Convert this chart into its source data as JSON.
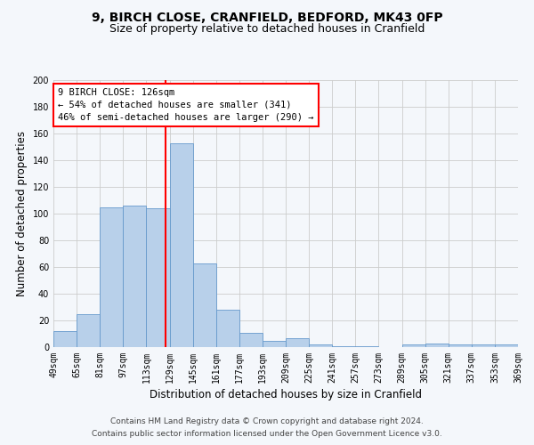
{
  "title": "9, BIRCH CLOSE, CRANFIELD, BEDFORD, MK43 0FP",
  "subtitle": "Size of property relative to detached houses in Cranfield",
  "xlabel": "Distribution of detached houses by size in Cranfield",
  "ylabel": "Number of detached properties",
  "bin_labels": [
    "49sqm",
    "65sqm",
    "81sqm",
    "97sqm",
    "113sqm",
    "129sqm",
    "145sqm",
    "161sqm",
    "177sqm",
    "193sqm",
    "209sqm",
    "225sqm",
    "241sqm",
    "257sqm",
    "273sqm",
    "289sqm",
    "305sqm",
    "321sqm",
    "337sqm",
    "353sqm",
    "369sqm"
  ],
  "bar_values": [
    12,
    25,
    105,
    106,
    104,
    153,
    63,
    28,
    11,
    5,
    7,
    2,
    1,
    1,
    0,
    2,
    3,
    2,
    2,
    2
  ],
  "bin_edges": [
    49,
    65,
    81,
    97,
    113,
    129,
    145,
    161,
    177,
    193,
    209,
    225,
    241,
    257,
    273,
    289,
    305,
    321,
    337,
    353,
    369
  ],
  "bar_color": "#b8d0ea",
  "bar_edge_color": "#6699cc",
  "vline_x": 126,
  "vline_color": "red",
  "ylim": [
    0,
    200
  ],
  "yticks": [
    0,
    20,
    40,
    60,
    80,
    100,
    120,
    140,
    160,
    180,
    200
  ],
  "annotation_line1": "9 BIRCH CLOSE: 126sqm",
  "annotation_line2": "← 54% of detached houses are smaller (341)",
  "annotation_line3": "46% of semi-detached houses are larger (290) →",
  "footer1": "Contains HM Land Registry data © Crown copyright and database right 2024.",
  "footer2": "Contains public sector information licensed under the Open Government Licence v3.0.",
  "bg_color": "#f4f7fb",
  "plot_bg_color": "#f4f7fb",
  "grid_color": "#cccccc",
  "title_fontsize": 10,
  "subtitle_fontsize": 9,
  "label_fontsize": 8.5,
  "tick_fontsize": 7,
  "annot_fontsize": 7.5,
  "footer_fontsize": 6.5
}
